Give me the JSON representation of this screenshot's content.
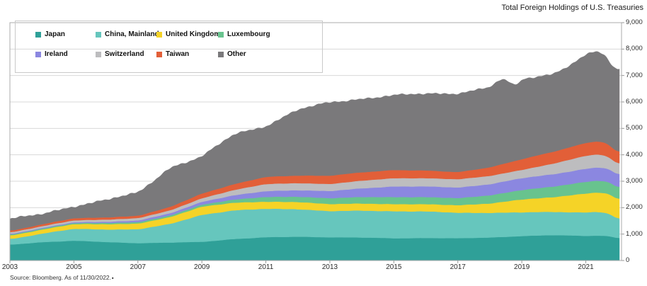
{
  "title": "Total Foreign Holdings of U.S. Treasuries",
  "source": {
    "text": "Source: Bloomberg. As of 11/30/2022.",
    "marker": "▪"
  },
  "legend": {
    "items": [
      {
        "label": "Japan",
        "color": "#2FA098"
      },
      {
        "label": "China, Mainland",
        "color": "#66C6BD"
      },
      {
        "label": "United Kingdom",
        "color": "#F5D327"
      },
      {
        "label": "Luxembourg",
        "color": "#68C38E"
      },
      {
        "label": "Ireland",
        "color": "#8B87E0"
      },
      {
        "label": "Switzerland",
        "color": "#BDBDBF"
      },
      {
        "label": "Taiwan",
        "color": "#E25F38"
      },
      {
        "label": "Other",
        "color": "#7A797B"
      }
    ]
  },
  "chart_data": {
    "type": "area",
    "stacked": true,
    "title": "Total Foreign Holdings of U.S. Treasuries",
    "grid": true,
    "legend_position": "top-left",
    "xlim": [
      2003,
      2022.05
    ],
    "ylim": [
      0,
      9000
    ],
    "xticks": [
      2003,
      2005,
      2007,
      2009,
      2011,
      2013,
      2015,
      2017,
      2019,
      2021
    ],
    "yticks": [
      0,
      1000,
      2000,
      3000,
      4000,
      5000,
      6000,
      7000,
      8000,
      9000
    ],
    "x": [
      2003,
      2004,
      2005,
      2006,
      2007,
      2008,
      2009,
      2010,
      2011,
      2012,
      2013,
      2014,
      2015,
      2016,
      2017,
      2018,
      2018.4,
      2018.8,
      2019,
      2020,
      2020.5,
      2021,
      2021.4,
      2021.7,
      2021.9,
      2022.05
    ],
    "series": [
      {
        "name": "Japan",
        "color": "#2FA098",
        "wiggle": 9,
        "values": [
          600,
          700,
          750,
          700,
          663,
          680,
          705,
          820,
          880,
          900,
          886,
          870,
          841,
          860,
          841,
          870,
          895,
          920,
          932,
          960,
          945,
          932,
          950,
          930,
          880,
          840
        ]
      },
      {
        "name": "China, Mainland",
        "color": "#66C6BD",
        "wiggle": 13,
        "values": [
          210,
          320,
          450,
          480,
          519,
          700,
          1030,
          1080,
          1077,
          1050,
          983,
          1020,
          1028,
          1000,
          965,
          940,
          921,
          902,
          892,
          880,
          885,
          892,
          900,
          860,
          760,
          716
        ]
      },
      {
        "name": "United Kingdom",
        "color": "#F5D327",
        "wiggle": 7,
        "values": [
          130,
          150,
          180,
          200,
          215,
          260,
          312,
          290,
          269,
          270,
          268,
          268,
          268,
          275,
          286,
          350,
          406,
          462,
          490,
          560,
          640,
          715,
          730,
          750,
          740,
          758
        ]
      },
      {
        "name": "Luxembourg",
        "color": "#68C38E",
        "wiggle": 4,
        "values": [
          35,
          38,
          40,
          47,
          54,
          62,
          72,
          120,
          179,
          200,
          223,
          245,
          268,
          268,
          268,
          310,
          329,
          348,
          358,
          400,
          420,
          445,
          450,
          450,
          445,
          448
        ]
      },
      {
        "name": "Ireland",
        "color": "#8B87E0",
        "wiggle": 5,
        "values": [
          25,
          28,
          30,
          45,
          62,
          80,
          107,
          160,
          223,
          245,
          268,
          330,
          401,
          402,
          402,
          420,
          431,
          442,
          447,
          470,
          480,
          493,
          500,
          495,
          480,
          490
        ]
      },
      {
        "name": "Switzerland",
        "color": "#BDBDBF",
        "wiggle": 6,
        "values": [
          60,
          65,
          70,
          80,
          91,
          110,
          134,
          200,
          268,
          268,
          268,
          290,
          313,
          313,
          313,
          313,
          313,
          313,
          313,
          400,
          450,
          491,
          495,
          460,
          420,
          403
        ]
      },
      {
        "name": "Taiwan",
        "color": "#E25F38",
        "wiggle": 9,
        "values": [
          60,
          70,
          80,
          85,
          89,
          130,
          180,
          220,
          268,
          290,
          313,
          313,
          313,
          290,
          268,
          330,
          359,
          388,
          402,
          450,
          470,
          491,
          500,
          480,
          430,
          447
        ]
      },
      {
        "name": "Other",
        "color": "#7A797B",
        "wiggle": 48,
        "values": [
          440,
          380,
          460,
          650,
          857,
          1500,
          1380,
          1890,
          1926,
          2480,
          2771,
          2790,
          2808,
          2900,
          2987,
          3010,
          3250,
          2770,
          3036,
          2950,
          3100,
          3311,
          3400,
          3220,
          3000,
          3218
        ]
      }
    ]
  }
}
